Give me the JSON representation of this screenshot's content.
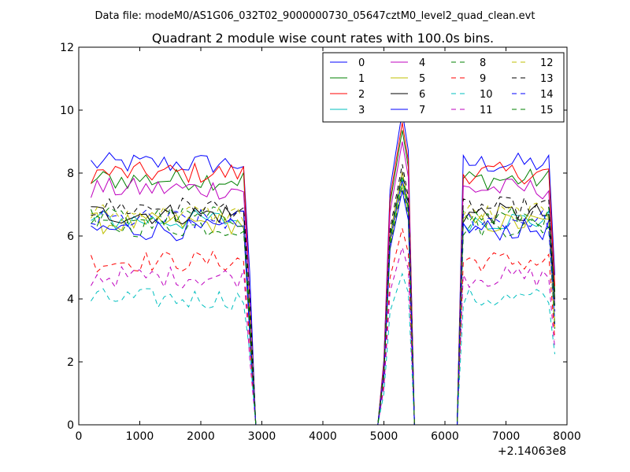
{
  "chart_data": {
    "type": "line",
    "suptitle": "Data file: modeM0/AS1G06_032T02_9000000730_05647cztM0_level2_quad_clean.evt",
    "title": "Quadrant 2 module wise count rates with 100.0s bins.",
    "xlabel": "",
    "ylabel": "",
    "x_offset_label": "+2.14063e8",
    "xlim": [
      0,
      8000
    ],
    "ylim": [
      0,
      12
    ],
    "xticks": [
      0,
      1000,
      2000,
      3000,
      4000,
      5000,
      6000,
      7000,
      8000
    ],
    "yticks": [
      0,
      2,
      4,
      6,
      8,
      10,
      12
    ],
    "grid": false,
    "legend_position": "top-right",
    "legend_columns": 4,
    "x": [
      200,
      300,
      400,
      500,
      600,
      700,
      800,
      900,
      1000,
      1100,
      1200,
      1300,
      1400,
      1500,
      1600,
      1700,
      1800,
      1900,
      2000,
      2100,
      2200,
      2300,
      2400,
      2500,
      2600,
      2700,
      2800,
      2900,
      3000,
      3100,
      3200,
      3300,
      3400,
      3500,
      3600,
      3700,
      3800,
      3900,
      4000,
      4100,
      4200,
      4300,
      4400,
      4500,
      4600,
      4700,
      4800,
      4900,
      5000,
      5100,
      5200,
      5300,
      5400,
      5500,
      5600,
      5700,
      5800,
      5900,
      6000,
      6100,
      6200,
      6300,
      6400,
      6500,
      6600,
      6700,
      6800,
      6900,
      7000,
      7100,
      7200,
      7300,
      7400,
      7500,
      7600,
      7700,
      7800
    ],
    "series": [
      {
        "name": "0",
        "color": "#0000ff",
        "dash": "solid",
        "base": 8.3
      },
      {
        "name": "1",
        "color": "#008000",
        "dash": "solid",
        "base": 7.8
      },
      {
        "name": "2",
        "color": "#ff0000",
        "dash": "solid",
        "base": 8.0
      },
      {
        "name": "3",
        "color": "#00bfbf",
        "dash": "solid",
        "base": 6.5
      },
      {
        "name": "4",
        "color": "#bf00bf",
        "dash": "solid",
        "base": 7.5
      },
      {
        "name": "5",
        "color": "#bfbf00",
        "dash": "solid",
        "base": 6.4
      },
      {
        "name": "6",
        "color": "#000000",
        "dash": "solid",
        "base": 6.7
      },
      {
        "name": "7",
        "color": "#0000ff",
        "dash": "solid",
        "base": 6.2
      },
      {
        "name": "8",
        "color": "#008000",
        "dash": "dashed",
        "base": 6.3
      },
      {
        "name": "9",
        "color": "#ff0000",
        "dash": "dashed",
        "base": 5.2
      },
      {
        "name": "10",
        "color": "#00bfbf",
        "dash": "dashed",
        "base": 4.0
      },
      {
        "name": "11",
        "color": "#bf00bf",
        "dash": "dashed",
        "base": 4.7
      },
      {
        "name": "12",
        "color": "#bfbf00",
        "dash": "dashed",
        "base": 6.7
      },
      {
        "name": "13",
        "color": "#000000",
        "dash": "dashed",
        "base": 6.9
      },
      {
        "name": "14",
        "color": "#0000ff",
        "dash": "dashed",
        "base": 6.5
      },
      {
        "name": "15",
        "color": "#008000",
        "dash": "dashed",
        "base": 6.6
      }
    ],
    "segments": [
      {
        "x_from": 200,
        "x_to": 2700
      },
      {
        "x_from": 6300,
        "x_to": 7700
      }
    ],
    "peak": {
      "x": [
        5000,
        5100,
        5200,
        5300,
        5400,
        5500
      ]
    }
  }
}
